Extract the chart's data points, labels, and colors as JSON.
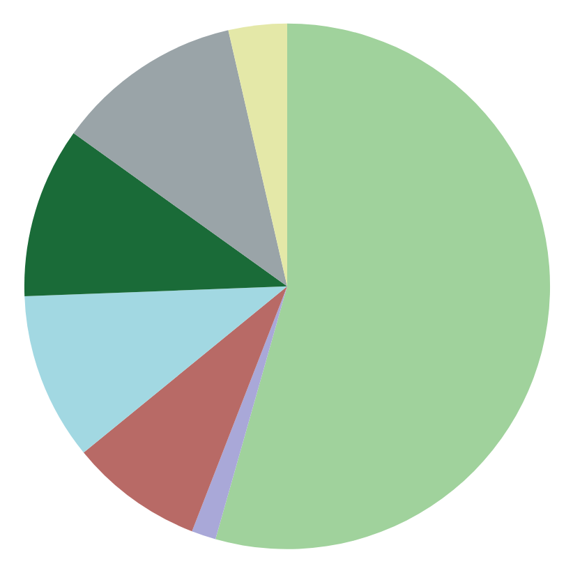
{
  "chart_data": {
    "type": "pie",
    "categories": [
      null,
      null,
      null,
      null,
      null,
      null,
      null
    ],
    "values": [
      54.4,
      1.5,
      8.2,
      10.3,
      10.5,
      11.5,
      3.6
    ],
    "colors": [
      "#a0d29c",
      "#a9a8d8",
      "#b86a66",
      "#a2d8e2",
      "#1a6b38",
      "#9aa4a8",
      "#e4e8a8"
    ]
  }
}
